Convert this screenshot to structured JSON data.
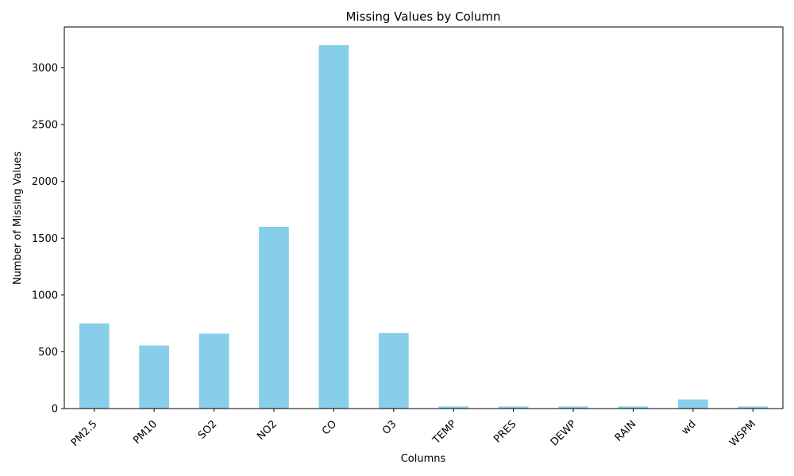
{
  "chart_data": {
    "type": "bar",
    "title": "Missing Values by Column",
    "xlabel": "Columns",
    "ylabel": "Number of Missing Values",
    "categories": [
      "PM2.5",
      "PM10",
      "SO2",
      "NO2",
      "CO",
      "O3",
      "TEMP",
      "PRES",
      "DEWP",
      "RAIN",
      "wd",
      "WSPM"
    ],
    "values": [
      750,
      555,
      660,
      1600,
      3200,
      665,
      18,
      18,
      18,
      18,
      80,
      18
    ],
    "ylim": [
      0,
      3360
    ],
    "yticks": [
      0,
      500,
      1000,
      1500,
      2000,
      2500,
      3000
    ],
    "bar_color": "#87CEEB",
    "grid": false,
    "legend": false
  }
}
